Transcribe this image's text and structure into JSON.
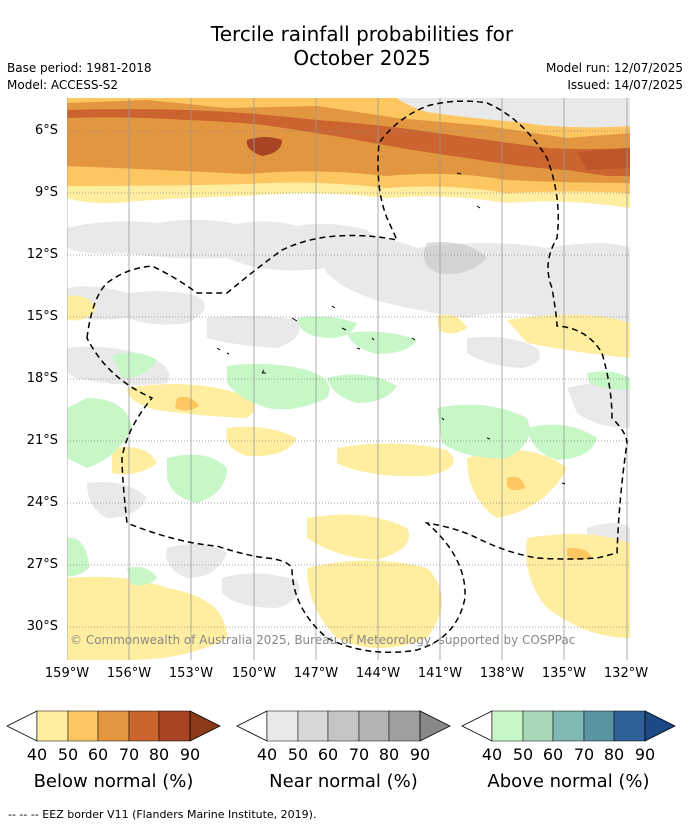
{
  "title_line1": "Tercile rainfall probabilities for",
  "title_line2": "October 2025",
  "left_meta": {
    "base_period": "Base period: 1981-2018",
    "model": "Model: ACCESS-S2"
  },
  "right_meta": {
    "model_run": "Model run: 12/07/2025",
    "issued": "Issued: 14/07/2025"
  },
  "lat_labels": [
    "6°S",
    "9°S",
    "12°S",
    "15°S",
    "18°S",
    "21°S",
    "24°S",
    "27°S",
    "30°S"
  ],
  "lon_labels": [
    "159°W",
    "156°W",
    "153°W",
    "150°W",
    "147°W",
    "144°W",
    "141°W",
    "138°W",
    "135°W",
    "132°W"
  ],
  "copyright": "© Commonwealth of Australia 2025, Bureau of Meteorology, supported by COSPPac",
  "colorbars": [
    {
      "title": "Below normal (%)",
      "ticks": [
        "40",
        "50",
        "60",
        "70",
        "80",
        "90"
      ],
      "colors": [
        "#ffeea0",
        "#fdc660",
        "#e39640",
        "#cc6430",
        "#a84424",
        "#8b3a1a"
      ]
    },
    {
      "title": "Near normal (%)",
      "ticks": [
        "40",
        "50",
        "60",
        "70",
        "80",
        "90"
      ],
      "colors": [
        "#e9e9e9",
        "#d8d8d8",
        "#c5c5c5",
        "#b3b3b3",
        "#9f9f9f",
        "#888888"
      ]
    },
    {
      "title": "Above normal (%)",
      "ticks": [
        "40",
        "50",
        "60",
        "70",
        "80",
        "90"
      ],
      "colors": [
        "#c7f7c7",
        "#a8d8b8",
        "#80b8b4",
        "#5894a4",
        "#30609a",
        "#1d4a86"
      ]
    }
  ],
  "footer": "--  --  -- EEZ border V11 (Flanders Marine Institute, 2019)."
}
